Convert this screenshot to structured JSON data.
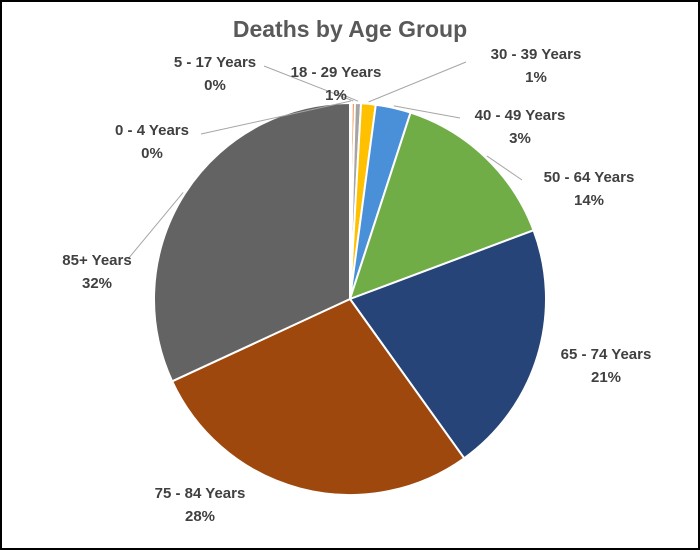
{
  "chart_data": {
    "type": "pie",
    "title": "Deaths by Age Group",
    "slices": [
      {
        "label": "0 - 4 Years",
        "value": 0.15,
        "display": "0%",
        "color": "#5B9BD5"
      },
      {
        "label": "5 - 17 Years",
        "value": 0.25,
        "display": "0%",
        "color": "#ED7D31"
      },
      {
        "label": "18 - 29 Years",
        "value": 0.5,
        "display": "1%",
        "color": "#A5A5A5"
      },
      {
        "label": "30 - 39 Years",
        "value": 1.2,
        "display": "1%",
        "color": "#FFC000"
      },
      {
        "label": "40 - 49 Years",
        "value": 2.9,
        "display": "3%",
        "color": "#4A90D9"
      },
      {
        "label": "50 - 64 Years",
        "value": 14.3,
        "display": "14%",
        "color": "#70AD47"
      },
      {
        "label": "65 - 74 Years",
        "value": 20.8,
        "display": "21%",
        "color": "#264478"
      },
      {
        "label": "75 - 84 Years",
        "value": 28.0,
        "display": "28%",
        "color": "#9E480E"
      },
      {
        "label": "85+ Years",
        "value": 31.9,
        "display": "32%",
        "color": "#636363"
      }
    ],
    "legend": "none",
    "data_labels": "outside with leader lines"
  }
}
